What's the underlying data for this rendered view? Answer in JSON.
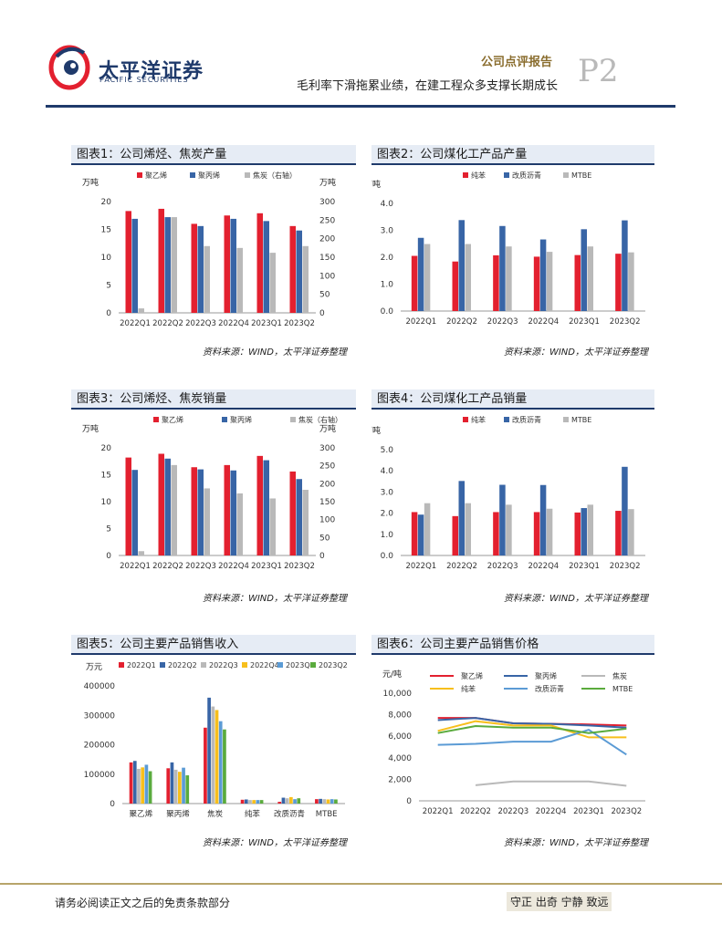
{
  "header": {
    "logo_cn": "太平洋证券",
    "logo_en": "PACIFIC SECURITIES",
    "report_type": "公司点评报告",
    "subtitle": "毛利率下滑拖累业绩，在建工程众多支撑长期成长",
    "page": "P2"
  },
  "footer": {
    "disclaimer": "请务必阅读正文之后的免责条款部分",
    "motto": "守正 出奇 宁静 致远"
  },
  "colors": {
    "red": "#e3202f",
    "blue": "#3865a6",
    "gray": "#b9b9b9",
    "yellow": "#f7bf1c",
    "lightblue": "#5b9bd5",
    "green": "#5aab3d",
    "navy": "#1f3a6b"
  },
  "chart_data": [
    {
      "id": "fig1",
      "type": "bar",
      "title": "图表1：公司烯烃、焦炭产量",
      "source": "资料来源：WIND，太平洋证券整理",
      "ylabel": "万吨",
      "y2label": "万吨",
      "ylim": [
        0,
        20
      ],
      "y2lim": [
        0,
        300
      ],
      "yticks": [
        "0",
        "5",
        "10",
        "15",
        "20"
      ],
      "y2ticks": [
        "0",
        "50",
        "100",
        "150",
        "200",
        "250",
        "300"
      ],
      "categories": [
        "2022Q1",
        "2022Q2",
        "2022Q3",
        "2022Q4",
        "2023Q1",
        "2023Q2"
      ],
      "series": [
        {
          "name": "聚乙烯",
          "axis": "left",
          "color": "#e3202f",
          "values": [
            18.3,
            18.7,
            16.0,
            17.5,
            17.9,
            15.6
          ]
        },
        {
          "name": "聚丙烯",
          "axis": "left",
          "color": "#3865a6",
          "values": [
            16.9,
            17.2,
            15.6,
            16.9,
            16.5,
            14.8
          ]
        },
        {
          "name": "焦炭（右轴）",
          "axis": "right",
          "color": "#b9b9b9",
          "values": [
            12,
            258,
            180,
            175,
            162,
            180
          ]
        }
      ]
    },
    {
      "id": "fig2",
      "type": "bar",
      "title": "图表2：公司煤化工产品产量",
      "source": "资料来源：WIND，太平洋证券整理",
      "ylabel": "万吨",
      "ylim": [
        0,
        4
      ],
      "yticks": [
        "0.0",
        "1.0",
        "2.0",
        "3.0",
        "4.0"
      ],
      "categories": [
        "2022Q1",
        "2022Q2",
        "2022Q3",
        "2022Q4",
        "2023Q1",
        "2023Q2"
      ],
      "series": [
        {
          "name": "纯苯",
          "color": "#e3202f",
          "values": [
            2.05,
            1.84,
            2.07,
            2.02,
            2.08,
            2.13
          ]
        },
        {
          "name": "改质沥青",
          "color": "#3865a6",
          "values": [
            2.72,
            3.38,
            3.16,
            2.66,
            3.04,
            3.37
          ]
        },
        {
          "name": "MTBE",
          "color": "#b9b9b9",
          "values": [
            2.49,
            2.49,
            2.4,
            2.2,
            2.4,
            2.18
          ]
        }
      ]
    },
    {
      "id": "fig3",
      "type": "bar",
      "title": "图表3：公司烯烃、焦炭销量",
      "source": "资料来源：WIND，太平洋证券整理",
      "ylabel": "万吨",
      "y2label": "万吨",
      "ylim": [
        0,
        20
      ],
      "y2lim": [
        0,
        300
      ],
      "yticks": [
        "0",
        "5",
        "10",
        "15",
        "20"
      ],
      "y2ticks": [
        "0",
        "50",
        "100",
        "150",
        "200",
        "250",
        "300"
      ],
      "categories": [
        "2022Q1",
        "2022Q2",
        "2022Q3",
        "2022Q4",
        "2023Q1",
        "2023Q2"
      ],
      "series": [
        {
          "name": "聚乙烯",
          "axis": "left",
          "color": "#e3202f",
          "values": [
            18.2,
            18.9,
            16.4,
            16.8,
            18.5,
            15.6
          ]
        },
        {
          "name": "聚丙烯",
          "axis": "left",
          "color": "#3865a6",
          "values": [
            15.9,
            18.0,
            16.0,
            15.8,
            17.7,
            14.2
          ]
        },
        {
          "name": "焦炭（右轴）",
          "axis": "right",
          "color": "#b9b9b9",
          "values": [
            12,
            252,
            187,
            173,
            159,
            183
          ]
        }
      ]
    },
    {
      "id": "fig4",
      "type": "bar",
      "title": "图表4：公司煤化工产品销量",
      "source": "资料来源：WIND，太平洋证券整理",
      "ylabel": "万吨",
      "ylim": [
        0,
        5
      ],
      "yticks": [
        "0.0",
        "1.0",
        "2.0",
        "3.0",
        "4.0",
        "5.0"
      ],
      "categories": [
        "2022Q1",
        "2022Q2",
        "2022Q3",
        "2022Q4",
        "2023Q1",
        "2023Q2"
      ],
      "series": [
        {
          "name": "纯苯",
          "color": "#e3202f",
          "values": [
            2.05,
            1.86,
            2.05,
            2.05,
            2.03,
            2.11
          ]
        },
        {
          "name": "改质沥青",
          "color": "#3865a6",
          "values": [
            1.93,
            3.52,
            3.34,
            3.33,
            2.24,
            4.19
          ]
        },
        {
          "name": "MTBE",
          "color": "#b9b9b9",
          "values": [
            2.47,
            2.47,
            2.4,
            2.21,
            2.4,
            2.19
          ]
        }
      ]
    },
    {
      "id": "fig5",
      "type": "bar",
      "title": "图表5：公司主要产品销售收入",
      "source": "资料来源：WIND，太平洋证券整理",
      "ylabel": "万元",
      "ylim": [
        0,
        400000
      ],
      "yticks": [
        "0",
        "100000",
        "200000",
        "300000",
        "400000"
      ],
      "categories": [
        "聚乙烯",
        "聚丙烯",
        "焦炭",
        "纯苯",
        "改质沥青",
        "MTBE"
      ],
      "series": [
        {
          "name": "2022Q1",
          "color": "#e3202f",
          "values": [
            140000,
            120000,
            258000,
            13000,
            6000,
            15000
          ]
        },
        {
          "name": "2022Q2",
          "color": "#3865a6",
          "values": [
            145000,
            140000,
            360000,
            14000,
            20000,
            16000
          ]
        },
        {
          "name": "2022Q3",
          "color": "#b9b9b9",
          "values": [
            118000,
            115000,
            330000,
            12000,
            18000,
            15000
          ]
        },
        {
          "name": "2022Q4",
          "color": "#f7bf1c",
          "values": [
            123000,
            108000,
            318000,
            12000,
            22000,
            14000
          ]
        },
        {
          "name": "2023Q1",
          "color": "#5b9bd5",
          "values": [
            132000,
            122000,
            280000,
            12000,
            15000,
            15000
          ]
        },
        {
          "name": "2023Q2",
          "color": "#5aab3d",
          "values": [
            110000,
            96000,
            252000,
            12000,
            18000,
            14000
          ]
        }
      ]
    },
    {
      "id": "fig6",
      "type": "line",
      "title": "图表6：公司主要产品销售价格",
      "source": "资料来源：WIND，太平洋证券整理",
      "ylabel": "元/吨",
      "ylim": [
        0,
        10000
      ],
      "yticks": [
        "0",
        "2,000",
        "4,000",
        "6,000",
        "8,000",
        "10,000"
      ],
      "categories": [
        "2022Q1",
        "2022Q2",
        "2022Q3",
        "2022Q4",
        "2023Q1",
        "2023Q2"
      ],
      "series": [
        {
          "name": "聚乙烯",
          "color": "#e3202f",
          "values": [
            7700,
            7700,
            7200,
            7150,
            7100,
            7000
          ]
        },
        {
          "name": "聚丙烯",
          "color": "#3865a6",
          "values": [
            7500,
            7700,
            7200,
            7150,
            7000,
            6800
          ]
        },
        {
          "name": "焦炭",
          "color": "#b9b9b9",
          "values": [
            null,
            1450,
            1800,
            1800,
            1800,
            1400
          ]
        },
        {
          "name": "纯苯",
          "color": "#f7bf1c",
          "values": [
            6500,
            7400,
            7000,
            7000,
            5900,
            5900
          ]
        },
        {
          "name": "改质沥青",
          "color": "#5b9bd5",
          "values": [
            5200,
            5300,
            5500,
            5500,
            6600,
            4300
          ]
        },
        {
          "name": "MTBE",
          "color": "#5aab3d",
          "values": [
            6300,
            6950,
            6800,
            6800,
            6300,
            6700
          ]
        }
      ]
    }
  ]
}
